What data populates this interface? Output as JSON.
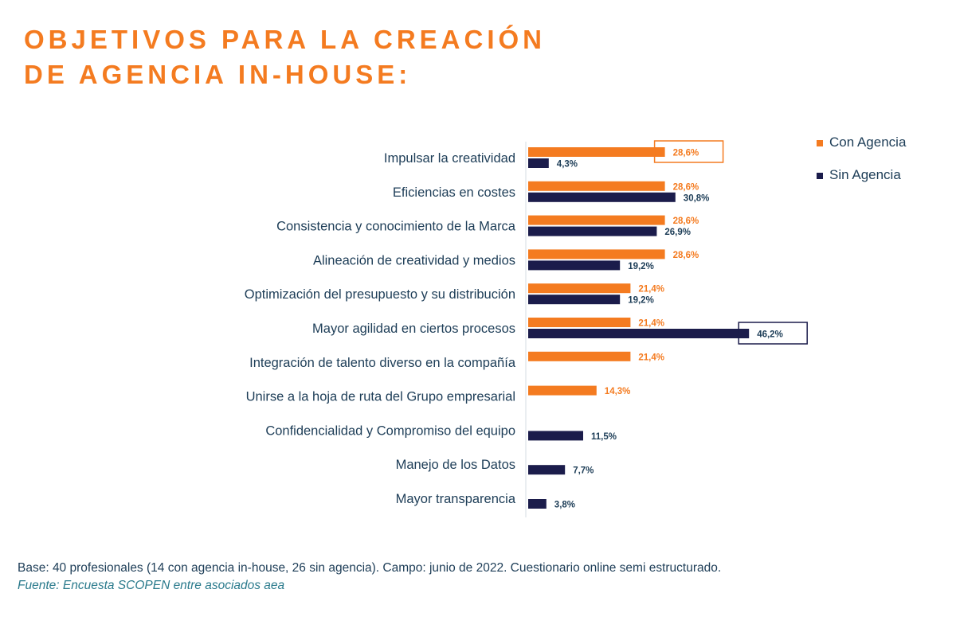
{
  "title_lines": [
    "OBJETIVOS PARA LA CREACIÓN",
    "DE AGENCIA IN-HOUSE:"
  ],
  "colors": {
    "con": "#f47b20",
    "sin": "#1b1c4b",
    "label": "#1d3d57",
    "value_con": "#f47b20",
    "value_sin": "#1d3d57"
  },
  "chart_data": {
    "type": "bar",
    "orientation": "horizontal",
    "categories": [
      "Impulsar la creatividad",
      "Eficiencias en costes",
      "Consistencia y conocimiento de la Marca",
      "Alineación de creatividad y medios",
      "Optimización del presupuesto y su distribución",
      "Mayor agilidad en ciertos procesos",
      "Integración de talento diverso en la compañía",
      "Unirse a la hoja de ruta del Grupo empresarial",
      "Confidencialidad y Compromiso del equipo",
      "Manejo de los Datos",
      "Mayor transparencia"
    ],
    "series": [
      {
        "name": "Con Agencia",
        "values": [
          28.6,
          28.6,
          28.6,
          28.6,
          21.4,
          21.4,
          21.4,
          14.3,
          null,
          null,
          null
        ],
        "labels": [
          "28,6%",
          "28,6%",
          "28,6%",
          "28,6%",
          "21,4%",
          "21,4%",
          "21,4%",
          "14,3%",
          "",
          "",
          ""
        ]
      },
      {
        "name": "Sin Agencia",
        "values": [
          4.3,
          30.8,
          26.9,
          19.2,
          19.2,
          46.2,
          null,
          null,
          11.5,
          7.7,
          3.8
        ],
        "labels": [
          "4,3%",
          "30,8%",
          "26,9%",
          "19,2%",
          "19,2%",
          "46,2%",
          "",
          "",
          "11,5%",
          "7,7%",
          "3,8%"
        ]
      }
    ],
    "highlights": [
      {
        "series": "Con Agencia",
        "category": "Impulsar la creatividad"
      },
      {
        "series": "Sin Agencia",
        "category": "Mayor agilidad en ciertos procesos"
      }
    ],
    "legend_position": "top-right",
    "grid": false,
    "xlim": [
      0,
      50
    ]
  },
  "footnote": {
    "base": "Base: 40 profesionales (14 con agencia in-house, 26 sin agencia). Campo: junio de 2022. Cuestionario online semi estructurado.",
    "source": "Fuente: Encuesta SCOPEN entre asociados aea"
  }
}
